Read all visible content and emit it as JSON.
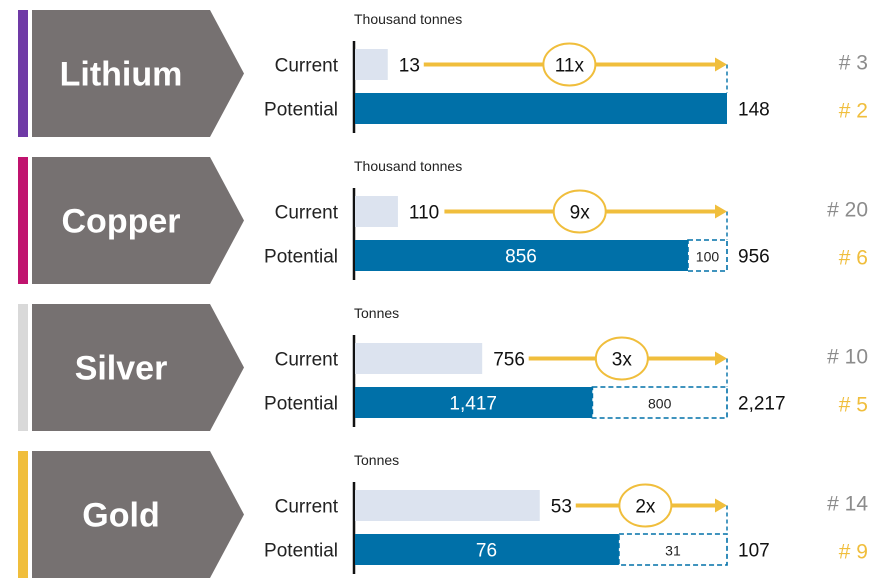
{
  "chart_data": [
    {
      "type": "bar",
      "metal": "Lithium",
      "accent_color": "#6F3AA6",
      "unit_label": "Thousand tonnes",
      "categories": [
        "Current",
        "Potential"
      ],
      "current": 13,
      "current_label": "13",
      "potential": 148,
      "potential_label": "148",
      "potential_split": null,
      "multiplier": "11x",
      "rank_current": "# 3",
      "rank_potential": "# 2"
    },
    {
      "type": "bar",
      "metal": "Copper",
      "accent_color": "#C0136E",
      "unit_label": "Thousand tonnes",
      "categories": [
        "Current",
        "Potential"
      ],
      "current": 110,
      "current_label": "110",
      "potential": 956,
      "potential_label": "956",
      "potential_split": [
        {
          "value": 856,
          "label": "856"
        },
        {
          "value": 100,
          "label": "100"
        }
      ],
      "multiplier": "9x",
      "rank_current": "# 20",
      "rank_potential": "# 6"
    },
    {
      "type": "bar",
      "metal": "Silver",
      "accent_color": "#D9D9D9",
      "unit_label": "Tonnes",
      "categories": [
        "Current",
        "Potential"
      ],
      "current": 756,
      "current_label": "756",
      "potential": 2217,
      "potential_label": "2,217",
      "potential_split": [
        {
          "value": 1417,
          "label": "1,417"
        },
        {
          "value": 800,
          "label": "800"
        }
      ],
      "multiplier": "3x",
      "rank_current": "# 10",
      "rank_potential": "# 5"
    },
    {
      "type": "bar",
      "metal": "Gold",
      "accent_color": "#F0BE3C",
      "unit_label": "Tonnes",
      "categories": [
        "Current",
        "Potential"
      ],
      "current": 53,
      "current_label": "53",
      "potential": 107,
      "potential_label": "107",
      "potential_split": [
        {
          "value": 76,
          "label": "76"
        },
        {
          "value": 31,
          "label": "31"
        }
      ],
      "multiplier": "2x",
      "rank_current": "# 14",
      "rank_potential": "# 9"
    }
  ],
  "colors": {
    "chevron": "#767171",
    "current_bar": "#DCE3EF",
    "potential_bar": "#0070A8",
    "arrow": "#F0BE3C",
    "rank_current": "#8C8C8C",
    "rank_potential": "#F0BE3C"
  }
}
